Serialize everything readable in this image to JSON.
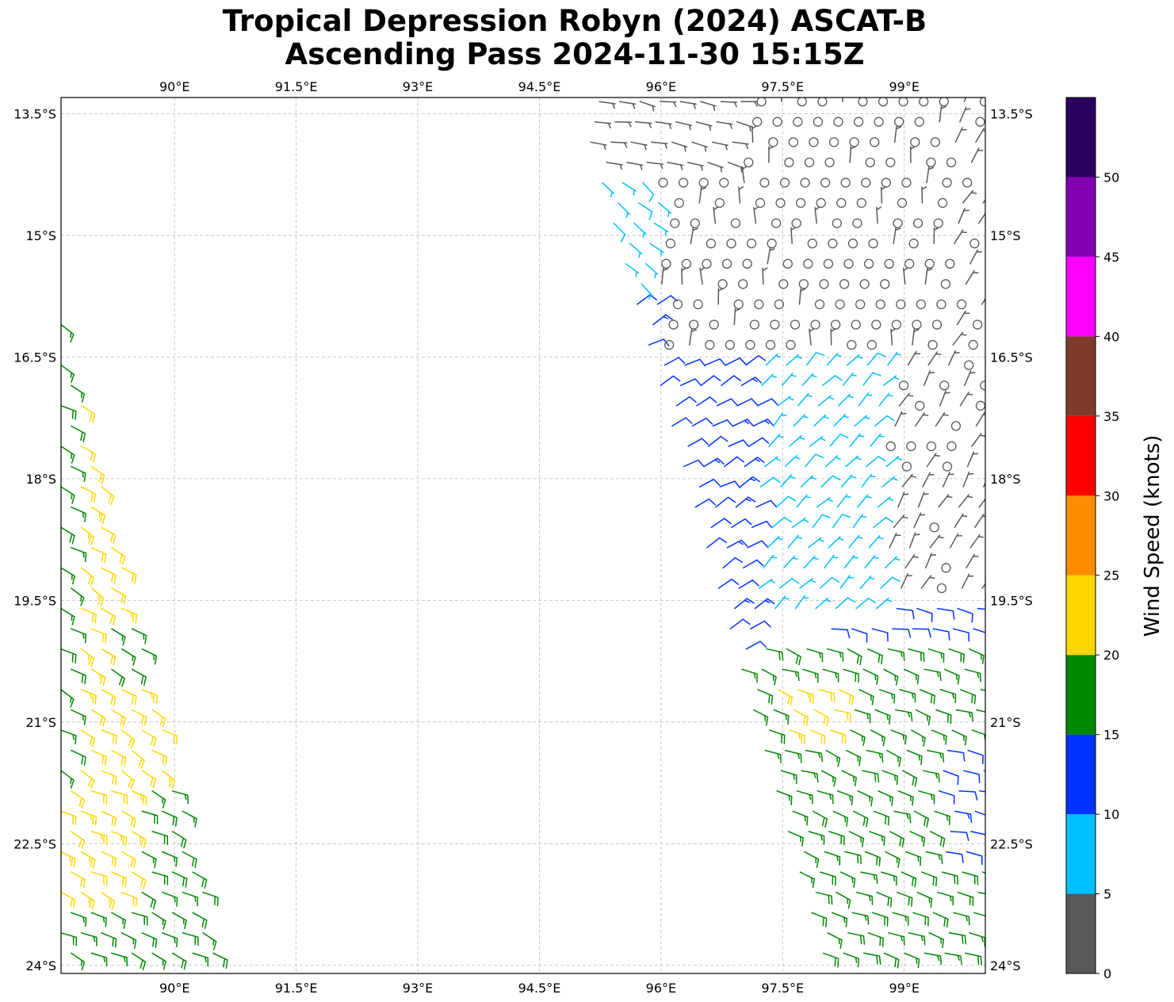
{
  "title": {
    "line1": "Tropical Depression Robyn (2024) ASCAT-B",
    "line2": "Ascending Pass 2024-11-30 15:15Z"
  },
  "map": {
    "lon_range": [
      88.6,
      100.0
    ],
    "lat_range": [
      -24.1,
      -13.3
    ],
    "lon_ticks": [
      {
        "value": 90.0,
        "label": "90°E"
      },
      {
        "value": 91.5,
        "label": "91.5°E"
      },
      {
        "value": 93.0,
        "label": "93°E"
      },
      {
        "value": 94.5,
        "label": "94.5°E"
      },
      {
        "value": 96.0,
        "label": "96°E"
      },
      {
        "value": 97.5,
        "label": "97.5°E"
      },
      {
        "value": 99.0,
        "label": "99°E"
      }
    ],
    "lat_ticks": [
      {
        "value": -13.5,
        "label": "13.5°S"
      },
      {
        "value": -15.0,
        "label": "15°S"
      },
      {
        "value": -16.5,
        "label": "16.5°S"
      },
      {
        "value": -18.0,
        "label": "18°S"
      },
      {
        "value": -19.5,
        "label": "19.5°S"
      },
      {
        "value": -21.0,
        "label": "21°S"
      },
      {
        "value": -22.5,
        "label": "22.5°S"
      },
      {
        "value": -24.0,
        "label": "24°S"
      }
    ],
    "grid": true,
    "gridline_color": "#bbbbbb"
  },
  "colorbar": {
    "label": "Wind Speed (knots)",
    "range": [
      0,
      55
    ],
    "bins": [
      {
        "min": 0,
        "max": 5,
        "color": "#595959"
      },
      {
        "min": 5,
        "max": 10,
        "color": "#00bfff"
      },
      {
        "min": 10,
        "max": 15,
        "color": "#0033ff"
      },
      {
        "min": 15,
        "max": 20,
        "color": "#008800"
      },
      {
        "min": 20,
        "max": 25,
        "color": "#ffd700"
      },
      {
        "min": 25,
        "max": 30,
        "color": "#ff8c00"
      },
      {
        "min": 30,
        "max": 35,
        "color": "#ff0000"
      },
      {
        "min": 35,
        "max": 40,
        "color": "#7f3b29"
      },
      {
        "min": 40,
        "max": 45,
        "color": "#ff00ff"
      },
      {
        "min": 45,
        "max": 50,
        "color": "#8000b0"
      },
      {
        "min": 50,
        "max": 55,
        "color": "#2a0060"
      }
    ],
    "ticks": [
      {
        "value": 0,
        "label": "0"
      },
      {
        "value": 5,
        "label": "5"
      },
      {
        "value": 10,
        "label": "10"
      },
      {
        "value": 15,
        "label": "15"
      },
      {
        "value": 20,
        "label": "20"
      },
      {
        "value": 25,
        "label": "25"
      },
      {
        "value": 30,
        "label": "30"
      },
      {
        "value": 35,
        "label": "35"
      },
      {
        "value": 40,
        "label": "40"
      },
      {
        "value": 45,
        "label": "45"
      },
      {
        "value": 50,
        "label": "50"
      }
    ]
  },
  "wind_barbs": {
    "swaths": [
      {
        "name": "west",
        "lat_range": [
          -24.1,
          -15.9
        ],
        "west_edge_lon": [
          88.6,
          88.6
        ],
        "east_edge_lon": [
          90.6,
          88.6
        ],
        "regions": [
          {
            "lat_range": [
              -24.1,
              -23.2
            ],
            "lon_range": [
              88.6,
              90.6
            ],
            "speed_kt": 17,
            "dir_deg": 115
          },
          {
            "lat_range": [
              -23.2,
              -21.8
            ],
            "lon_range": [
              88.6,
              89.6
            ],
            "speed_kt": 22,
            "dir_deg": 115
          },
          {
            "lat_range": [
              -23.2,
              -21.8
            ],
            "lon_range": [
              89.6,
              90.6
            ],
            "speed_kt": 18,
            "dir_deg": 115
          },
          {
            "lat_range": [
              -21.8,
              -17.0
            ],
            "lon_range": [
              88.6,
              88.8
            ],
            "speed_kt": 17,
            "dir_deg": 120
          },
          {
            "lat_range": [
              -21.8,
              -17.0
            ],
            "lon_range": [
              88.8,
              90.6
            ],
            "speed_kt": 22,
            "dir_deg": 120
          },
          {
            "lat_range": [
              -20.5,
              -19.8
            ],
            "lon_range": [
              89.2,
              89.6
            ],
            "speed_kt": 17,
            "dir_deg": 120
          },
          {
            "lat_range": [
              -17.0,
              -15.9
            ],
            "lon_range": [
              88.6,
              90.6
            ],
            "speed_kt": 17,
            "dir_deg": 125
          }
        ]
      },
      {
        "name": "east",
        "lat_range": [
          -24.1,
          -13.3
        ],
        "west_edge_lon": [
          98.2,
          95.1
        ],
        "east_edge_lon": [
          100.0,
          100.0
        ],
        "regions": [
          {
            "lat_range": [
              -24.1,
              -20.0
            ],
            "lon_range": [
              95.0,
              100.0
            ],
            "speed_kt": 17,
            "dir_deg": 110
          },
          {
            "lat_range": [
              -21.2,
              -20.4
            ],
            "lon_range": [
              97.4,
              98.2
            ],
            "speed_kt": 22,
            "dir_deg": 110
          },
          {
            "lat_range": [
              -22.7,
              -21.3
            ],
            "lon_range": [
              99.4,
              100.0
            ],
            "speed_kt": 12,
            "dir_deg": 100
          },
          {
            "lat_range": [
              -20.0,
              -19.4
            ],
            "lon_range": [
              98.0,
              100.0
            ],
            "speed_kt": 12,
            "dir_deg": 100
          },
          {
            "lat_range": [
              -20.3,
              -15.8
            ],
            "lon_range": [
              95.0,
              97.2
            ],
            "speed_kt": 12,
            "dir_deg": 60
          },
          {
            "lat_range": [
              -19.6,
              -13.6
            ],
            "lon_range": [
              97.2,
              98.8
            ],
            "speed_kt": 7,
            "dir_deg": 45
          },
          {
            "lat_range": [
              -15.8,
              -13.6
            ],
            "lon_range": [
              95.0,
              97.3
            ],
            "speed_kt": 7,
            "dir_deg": 130
          },
          {
            "lat_range": [
              -19.4,
              -13.3
            ],
            "lon_range": [
              98.8,
              100.0
            ],
            "speed_kt": 3,
            "dir_deg": 30
          },
          {
            "lat_range": [
              -16.4,
              -13.3
            ],
            "lon_range": [
              96.0,
              99.6
            ],
            "speed_kt": 2,
            "dir_deg": 0
          },
          {
            "lat_range": [
              -14.3,
              -13.3
            ],
            "lon_range": [
              95.0,
              97.0
            ],
            "speed_kt": 4,
            "dir_deg": 100
          }
        ]
      }
    ],
    "row_step_deg": 0.25,
    "col_step_deg": 0.25
  }
}
